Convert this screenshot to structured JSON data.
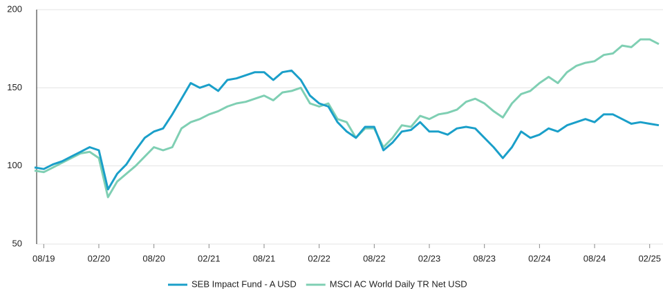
{
  "chart_data": {
    "type": "line",
    "x": [
      "07/19",
      "08/19",
      "09/19",
      "10/19",
      "11/19",
      "12/19",
      "01/20",
      "02/20",
      "03/20",
      "04/20",
      "05/20",
      "06/20",
      "07/20",
      "08/20",
      "09/20",
      "10/20",
      "11/20",
      "12/20",
      "01/21",
      "02/21",
      "03/21",
      "04/21",
      "05/21",
      "06/21",
      "07/21",
      "08/21",
      "09/21",
      "10/21",
      "11/21",
      "12/21",
      "01/22",
      "02/22",
      "03/22",
      "04/22",
      "05/22",
      "06/22",
      "07/22",
      "08/22",
      "09/22",
      "10/22",
      "11/22",
      "12/22",
      "01/23",
      "02/23",
      "03/23",
      "04/23",
      "05/23",
      "06/23",
      "07/23",
      "08/23",
      "09/23",
      "10/23",
      "11/23",
      "12/23",
      "01/24",
      "02/24",
      "03/24",
      "04/24",
      "05/24",
      "06/24",
      "07/24",
      "08/24",
      "09/24",
      "10/24",
      "11/24",
      "12/24",
      "01/25",
      "02/25",
      "03/25"
    ],
    "xticks": [
      "08/19",
      "02/20",
      "08/20",
      "02/21",
      "08/21",
      "02/22",
      "08/22",
      "02/23",
      "08/23",
      "02/24",
      "08/24",
      "02/25"
    ],
    "series": [
      {
        "name": "SEB Impact Fund - A USD",
        "color": "#1a9fc9",
        "values": [
          99,
          98,
          101,
          103,
          106,
          109,
          112,
          110,
          85,
          95,
          101,
          110,
          118,
          122,
          124,
          133,
          143,
          153,
          150,
          152,
          148,
          155,
          156,
          158,
          160,
          160,
          155,
          160,
          161,
          155,
          145,
          140,
          138,
          128,
          122,
          118,
          125,
          125,
          110,
          115,
          122,
          123,
          128,
          122,
          122,
          120,
          124,
          125,
          124,
          118,
          112,
          105,
          112,
          122,
          118,
          120,
          124,
          122,
          126,
          128,
          130,
          128,
          133,
          133,
          130,
          127,
          128,
          127,
          126
        ]
      },
      {
        "name": "MSCI AC World Daily TR Net USD",
        "color": "#7fcfb3",
        "values": [
          97,
          96,
          99,
          102,
          105,
          108,
          109,
          105,
          80,
          90,
          95,
          100,
          106,
          112,
          110,
          112,
          124,
          128,
          130,
          133,
          135,
          138,
          140,
          141,
          143,
          145,
          142,
          147,
          148,
          150,
          140,
          138,
          140,
          130,
          128,
          118,
          124,
          124,
          112,
          118,
          126,
          125,
          132,
          130,
          133,
          134,
          136,
          141,
          143,
          140,
          135,
          131,
          140,
          146,
          148,
          153,
          157,
          153,
          160,
          164,
          166,
          167,
          171,
          172,
          177,
          176,
          181,
          181,
          178
        ]
      }
    ],
    "ylim": [
      50,
      200
    ],
    "yticks": [
      50,
      100,
      150,
      200
    ],
    "grid": true
  }
}
